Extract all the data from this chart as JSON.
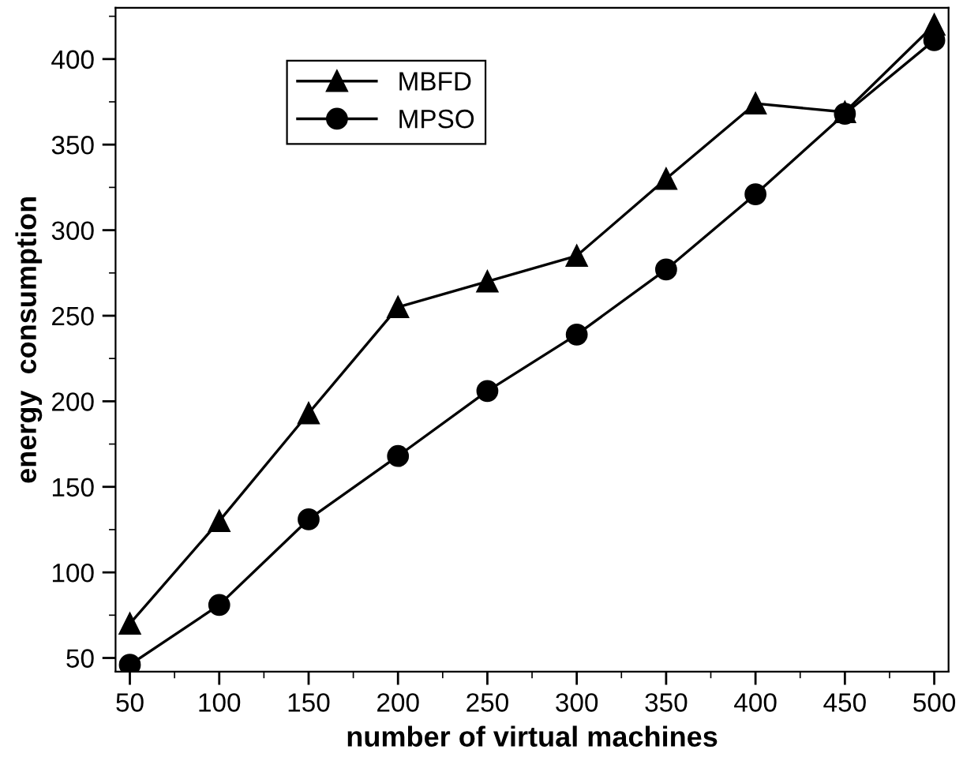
{
  "chart_data": {
    "type": "line",
    "xlabel": "number of virtual machines",
    "ylabel": "energy  consumption",
    "x": [
      50,
      100,
      150,
      200,
      250,
      300,
      350,
      400,
      450,
      500
    ],
    "series": [
      {
        "name": "MBFD",
        "color": "#000000",
        "marker": "triangle",
        "values": [
          70,
          130,
          193,
          255,
          270,
          285,
          330,
          374,
          369,
          420
        ]
      },
      {
        "name": "MPSO",
        "color": "#000000",
        "marker": "circle",
        "values": [
          46,
          81,
          131,
          168,
          206,
          239,
          277,
          321,
          368,
          411
        ]
      }
    ],
    "xlim": [
      42,
      508
    ],
    "ylim": [
      42,
      430
    ],
    "xticks": [
      50,
      100,
      150,
      200,
      250,
      300,
      350,
      400,
      450,
      500
    ],
    "yticks": [
      50,
      100,
      150,
      200,
      250,
      300,
      350,
      400
    ],
    "grid": false,
    "legend": "top left",
    "line_style": "solid"
  }
}
